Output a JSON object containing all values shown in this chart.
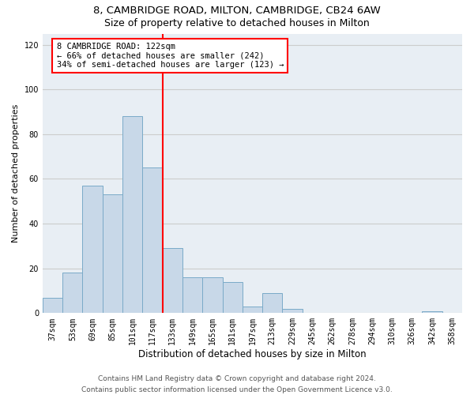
{
  "title_line1": "8, CAMBRIDGE ROAD, MILTON, CAMBRIDGE, CB24 6AW",
  "title_line2": "Size of property relative to detached houses in Milton",
  "xlabel": "Distribution of detached houses by size in Milton",
  "ylabel": "Number of detached properties",
  "categories": [
    "37sqm",
    "53sqm",
    "69sqm",
    "85sqm",
    "101sqm",
    "117sqm",
    "133sqm",
    "149sqm",
    "165sqm",
    "181sqm",
    "197sqm",
    "213sqm",
    "229sqm",
    "245sqm",
    "262sqm",
    "278sqm",
    "294sqm",
    "310sqm",
    "326sqm",
    "342sqm",
    "358sqm"
  ],
  "values": [
    7,
    18,
    57,
    53,
    88,
    65,
    29,
    16,
    16,
    14,
    3,
    9,
    2,
    0,
    0,
    0,
    0,
    0,
    0,
    1,
    0
  ],
  "bar_color": "#c8d8e8",
  "bar_edgecolor": "#7aaac8",
  "vline_x": 5.5,
  "vline_color": "red",
  "annotation_text": "8 CAMBRIDGE ROAD: 122sqm\n← 66% of detached houses are smaller (242)\n34% of semi-detached houses are larger (123) →",
  "annotation_box_color": "white",
  "annotation_box_edgecolor": "red",
  "ylim": [
    0,
    125
  ],
  "yticks": [
    0,
    20,
    40,
    60,
    80,
    100,
    120
  ],
  "grid_color": "#cccccc",
  "background_color": "#e8eef4",
  "footer_line1": "Contains HM Land Registry data © Crown copyright and database right 2024.",
  "footer_line2": "Contains public sector information licensed under the Open Government Licence v3.0.",
  "title_fontsize": 9.5,
  "subtitle_fontsize": 9,
  "xlabel_fontsize": 8.5,
  "ylabel_fontsize": 8,
  "tick_fontsize": 7,
  "annotation_fontsize": 7.5,
  "footer_fontsize": 6.5
}
